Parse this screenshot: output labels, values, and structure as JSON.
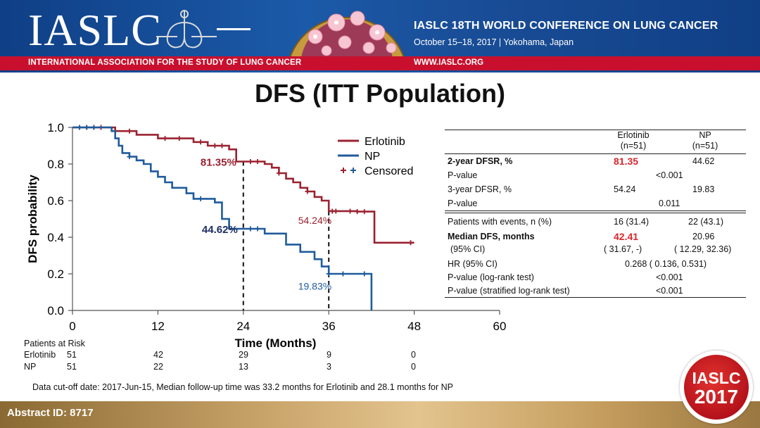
{
  "header": {
    "logo_text": "IASLC",
    "association": "INTERNATIONAL ASSOCIATION FOR THE STUDY OF LUNG CANCER",
    "conference_title": "IASLC 18TH WORLD CONFERENCE ON LUNG CANCER",
    "conference_dates": "October 15–18, 2017 | Yokohama, Japan",
    "website": "WWW.IASLC.ORG"
  },
  "slide_title": "DFS (ITT Population)",
  "chart_data": {
    "type": "line",
    "title": "DFS (ITT Population)",
    "xlabel": "Time (Months)",
    "ylabel": "DFS probability",
    "xlim": [
      0,
      60
    ],
    "ylim": [
      0.0,
      1.0
    ],
    "xticks": [
      "0",
      "12",
      "24",
      "36",
      "48",
      "60"
    ],
    "yticks": [
      "0.0",
      "0.2",
      "0.4",
      "0.6",
      "0.8",
      "1.0"
    ],
    "legend": {
      "position": "top-right",
      "entries": [
        "Erlotinib",
        "NP"
      ],
      "censored_label": "Censored"
    },
    "series": [
      {
        "name": "Erlotinib",
        "color": "#9b2230",
        "steps": [
          [
            0,
            1.0
          ],
          [
            6,
            0.98
          ],
          [
            9,
            0.96
          ],
          [
            12,
            0.94
          ],
          [
            17,
            0.92
          ],
          [
            19,
            0.9
          ],
          [
            22,
            0.88
          ],
          [
            23,
            0.8135
          ],
          [
            27,
            0.8
          ],
          [
            28,
            0.78
          ],
          [
            29,
            0.75
          ],
          [
            30,
            0.72
          ],
          [
            31,
            0.7
          ],
          [
            32,
            0.67
          ],
          [
            33,
            0.65
          ],
          [
            34,
            0.62
          ],
          [
            35,
            0.6
          ],
          [
            36,
            0.5424
          ],
          [
            40,
            0.54
          ],
          [
            42.41,
            0.37
          ],
          [
            48,
            0.37
          ]
        ],
        "censored": [
          [
            1,
            1.0
          ],
          [
            2,
            1.0
          ],
          [
            3,
            1.0
          ],
          [
            4,
            1.0
          ],
          [
            8,
            0.98
          ],
          [
            13,
            0.94
          ],
          [
            15,
            0.94
          ],
          [
            18,
            0.92
          ],
          [
            20,
            0.9
          ],
          [
            21,
            0.9
          ],
          [
            25,
            0.8135
          ],
          [
            26,
            0.8135
          ],
          [
            29,
            0.75
          ],
          [
            33,
            0.65
          ],
          [
            36.5,
            0.5424
          ],
          [
            37,
            0.5424
          ],
          [
            39,
            0.5424
          ],
          [
            40,
            0.54
          ],
          [
            41,
            0.54
          ],
          [
            47.5,
            0.37
          ]
        ]
      },
      {
        "name": "NP",
        "color": "#1f5b9c",
        "steps": [
          [
            0,
            1.0
          ],
          [
            5.5,
            0.98
          ],
          [
            6,
            0.94
          ],
          [
            6.5,
            0.9
          ],
          [
            7,
            0.86
          ],
          [
            8,
            0.84
          ],
          [
            9,
            0.82
          ],
          [
            10,
            0.8
          ],
          [
            11,
            0.76
          ],
          [
            12,
            0.73
          ],
          [
            13,
            0.7
          ],
          [
            14,
            0.67
          ],
          [
            16,
            0.64
          ],
          [
            17,
            0.61
          ],
          [
            20,
            0.59
          ],
          [
            21,
            0.5
          ],
          [
            22,
            0.4462
          ],
          [
            27,
            0.42
          ],
          [
            30,
            0.36
          ],
          [
            32,
            0.32
          ],
          [
            34,
            0.28
          ],
          [
            35,
            0.24
          ],
          [
            36,
            0.2
          ],
          [
            40,
            0.2
          ],
          [
            42,
            0.0
          ]
        ],
        "censored": [
          [
            1,
            1.0
          ],
          [
            2,
            1.0
          ],
          [
            3,
            1.0
          ],
          [
            8,
            0.84
          ],
          [
            18,
            0.61
          ],
          [
            25,
            0.4462
          ],
          [
            26,
            0.4462
          ],
          [
            36,
            0.2
          ],
          [
            38,
            0.2
          ],
          [
            41,
            0.2
          ]
        ]
      }
    ],
    "annotations": [
      {
        "text": "81.35%",
        "x": 24,
        "y": 0.8135,
        "series": "Erlotinib"
      },
      {
        "text": "44.62%",
        "x": 24,
        "y": 0.4462,
        "series": "NP"
      },
      {
        "text": "54.24%",
        "x": 36,
        "y": 0.5424,
        "series": "Erlotinib"
      },
      {
        "text": "19.83%",
        "x": 36,
        "y": 0.1983,
        "series": "NP"
      }
    ],
    "reference_lines_x": [
      24,
      36
    ]
  },
  "risk_table": {
    "title": "Patients at Risk",
    "rows": [
      {
        "label": "Erlotinib",
        "values": [
          "51",
          "42",
          "29",
          "9",
          "0"
        ]
      },
      {
        "label": "NP",
        "values": [
          "51",
          "22",
          "13",
          "3",
          "0"
        ]
      }
    ]
  },
  "summary_table": {
    "col_erlotinib": [
      "Erlotinib",
      "(n=51)"
    ],
    "col_np": [
      "NP",
      "(n=51)"
    ],
    "rows": {
      "dfsr2_label": "2-year DFSR, %",
      "dfsr2_erl": "81.35",
      "dfsr2_np": "44.62",
      "p1_label": "P-value",
      "p1_value": "<0.001",
      "dfsr3_label": "3-year DFSR, %",
      "dfsr3_erl": "54.24",
      "dfsr3_np": "19.83",
      "p2_label": "P-value",
      "p2_value": "0.011",
      "events_label": "Patients with events, n (%)",
      "events_erl": "16 (31.4)",
      "events_np": "22 (43.1)",
      "median_label": "Median DFS, months",
      "median_erl": "42.41",
      "median_np": "20.96",
      "ci_label": "(95% CI)",
      "ci_erl": "( 31.67,     -)",
      "ci_np": "( 12.29, 32.36)",
      "hr_label": "HR (95% CI)",
      "hr_value": "0.268  ( 0.136, 0.531)",
      "logrank_label": "P-value (log-rank test)",
      "logrank_value": "<0.001",
      "strat_label": "P-value (stratified log-rank test)",
      "strat_value": "<0.001"
    }
  },
  "footnote": "Data cut-off date: 2017-Jun-15, Median follow-up time was 33.2 months for Erlotinib and 28.1 months for NP",
  "abstract_id": "Abstract ID: 8717",
  "badge": {
    "line1": "IASLC",
    "line2": "2017"
  }
}
